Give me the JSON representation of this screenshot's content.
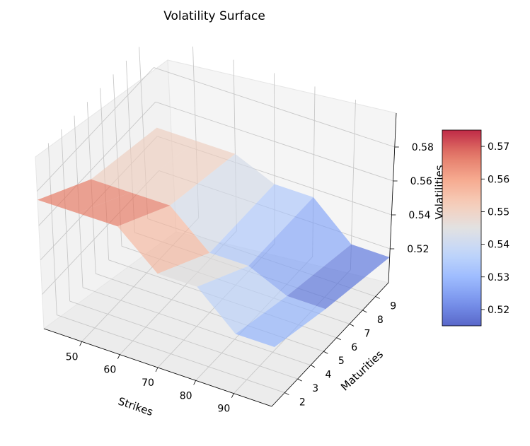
{
  "chart_data": {
    "type": "surface3d",
    "title": "Volatility Surface",
    "xlabel": "Strikes",
    "ylabel": "Maturities",
    "zlabel": "Volatilities",
    "x_ticks": [
      "50",
      "60",
      "70",
      "80",
      "90"
    ],
    "y_ticks": [
      "2",
      "3",
      "4",
      "5",
      "6",
      "7",
      "8",
      "9"
    ],
    "z_ticks": [
      "0.52",
      "0.54",
      "0.56",
      "0.58"
    ],
    "colorbar_ticks": [
      "0.52",
      "0.53",
      "0.54",
      "0.55",
      "0.56",
      "0.57"
    ],
    "colormap": "coolwarm",
    "strikes": [
      40,
      50,
      60,
      70,
      80,
      90,
      100
    ],
    "maturities": [
      1,
      5,
      10
    ],
    "volatilities": [
      [
        0.575,
        0.575,
        0.575,
        0.555,
        0.555,
        0.535,
        0.535
      ],
      [
        0.555,
        0.555,
        0.555,
        0.535,
        0.535,
        0.525,
        0.525
      ],
      [
        0.545,
        0.545,
        0.545,
        0.535,
        0.535,
        0.515,
        0.515
      ]
    ],
    "zlim": [
      0.5,
      0.6
    ],
    "color_range": [
      0.515,
      0.575
    ],
    "grid": true,
    "colorbar_position": "right"
  }
}
